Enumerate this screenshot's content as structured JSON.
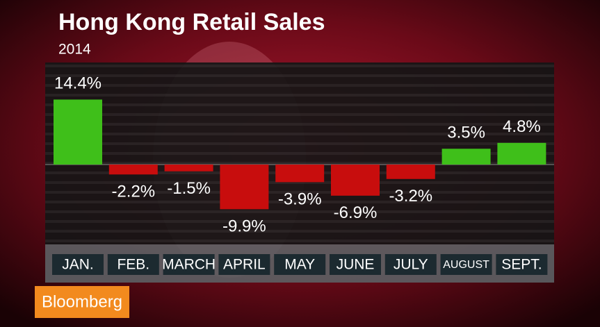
{
  "brand": "Bloomberg",
  "chart_data": {
    "type": "bar",
    "title": "Hong Kong Retail Sales",
    "subtitle": "2014",
    "categories": [
      "JAN.",
      "FEB.",
      "MARCH",
      "APRIL",
      "MAY",
      "JUNE",
      "JULY",
      "AUGUST",
      "SEPT."
    ],
    "values": [
      14.4,
      -2.2,
      -1.5,
      -9.9,
      -3.9,
      -6.9,
      -3.2,
      3.5,
      4.8
    ],
    "value_labels": [
      "14.4%",
      "-2.2%",
      "-1.5%",
      "-9.9%",
      "-3.9%",
      "-6.9%",
      "-3.2%",
      "3.5%",
      "4.8%"
    ],
    "colors": [
      "#3fbf1a",
      "#c80d0d",
      "#c80d0d",
      "#c80d0d",
      "#c80d0d",
      "#c80d0d",
      "#c80d0d",
      "#3fbf1a",
      "#3fbf1a"
    ]
  }
}
